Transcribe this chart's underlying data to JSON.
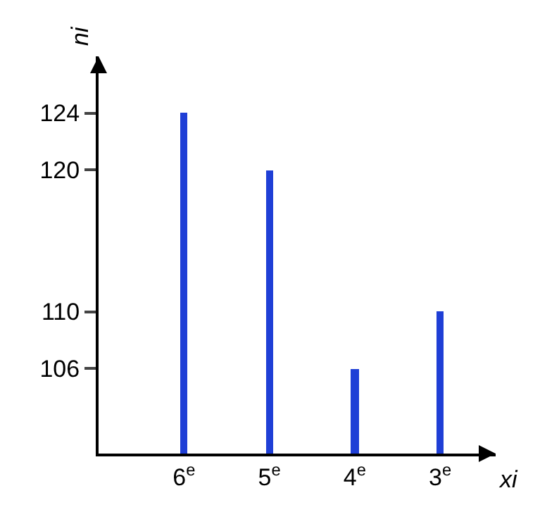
{
  "chart_data": {
    "type": "bar",
    "xlabel": "xi",
    "ylabel": "ni",
    "categories": [
      "6$^{e}$",
      "5$^{e}$",
      "4$^{e}$",
      "3$^{e}$"
    ],
    "values": [
      124,
      120,
      106,
      110
    ],
    "color": "#1f3fd6",
    "ylim": [
      100,
      128
    ],
    "yticks": [
      106,
      110,
      120,
      124
    ]
  }
}
